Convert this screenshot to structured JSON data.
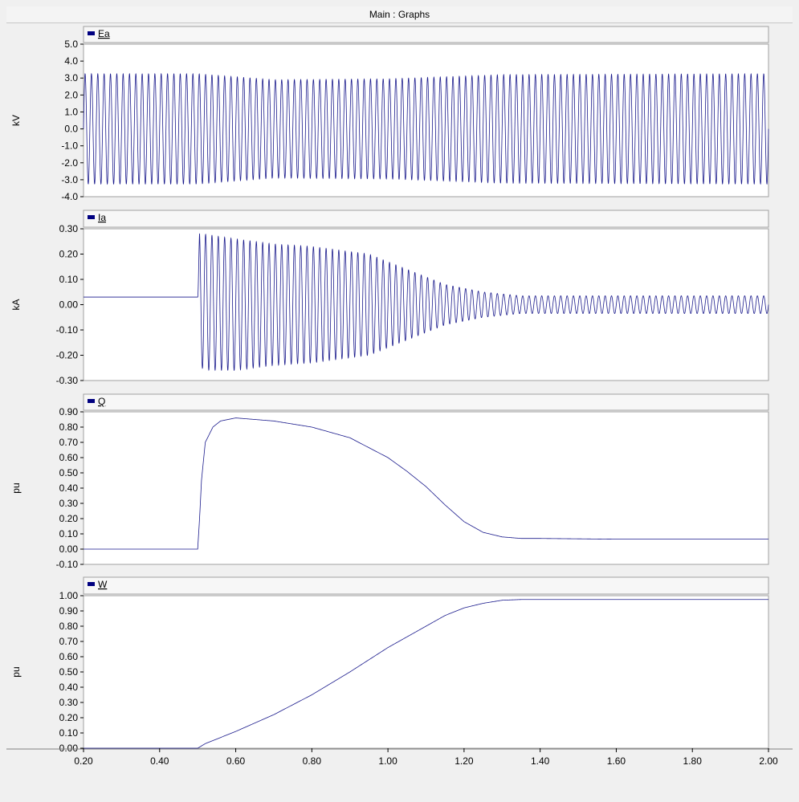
{
  "window": {
    "title": "Main : Graphs"
  },
  "colors": {
    "trace": "#1a1a8c",
    "legend_marker": "#000080",
    "grid": "#d8d8d8",
    "plot_bg": "#ffffff",
    "panel_bg": "#f0f0f0"
  },
  "chart_data": [
    {
      "type": "line",
      "legend": "Ea",
      "ylabel": "kV",
      "ylim": [
        -4.0,
        5.0
      ],
      "yticks": [
        "5.0",
        "4.0",
        "3.0",
        "2.0",
        "1.0",
        "0.0",
        "-1.0",
        "-2.0",
        "-3.0",
        "-4.0"
      ],
      "xlim": [
        0.2,
        2.0
      ],
      "series": [
        {
          "signal": "sine",
          "frequency_hz": 60,
          "envelope_t": [
            0.2,
            0.5,
            0.7,
            1.0,
            1.3,
            2.0
          ],
          "envelope_amp": [
            3.25,
            3.25,
            2.9,
            2.95,
            3.2,
            3.25
          ]
        }
      ]
    },
    {
      "type": "line",
      "legend": "Ia",
      "ylabel": "kA",
      "ylim": [
        -0.3,
        0.3
      ],
      "yticks": [
        "0.30",
        "0.20",
        "0.10",
        "0.00",
        "-0.10",
        "-0.20",
        "-0.30"
      ],
      "xlim": [
        0.2,
        2.0
      ],
      "series": [
        {
          "signal": "sine",
          "frequency_hz": 60,
          "offset_t": [
            0.5,
            0.52,
            0.6,
            0.7
          ],
          "offset_v": [
            0.03,
            0.01,
            0.0,
            0.0
          ],
          "envelope_t": [
            0.2,
            0.5,
            0.505,
            0.6,
            0.7,
            0.8,
            0.95,
            1.05,
            1.15,
            1.25,
            1.35,
            2.0
          ],
          "envelope_amp": [
            0.0,
            0.0,
            0.27,
            0.26,
            0.24,
            0.23,
            0.2,
            0.14,
            0.08,
            0.05,
            0.035,
            0.035
          ]
        }
      ]
    },
    {
      "type": "line",
      "legend": "Q",
      "ylabel": "pu",
      "ylim": [
        -0.1,
        0.9
      ],
      "yticks": [
        "0.90",
        "0.80",
        "0.70",
        "0.60",
        "0.50",
        "0.40",
        "0.30",
        "0.20",
        "0.10",
        "0.00",
        "-0.10"
      ],
      "xlim": [
        0.2,
        2.0
      ],
      "series": [
        {
          "x": [
            0.2,
            0.5,
            0.505,
            0.51,
            0.52,
            0.54,
            0.56,
            0.6,
            0.65,
            0.7,
            0.8,
            0.9,
            1.0,
            1.05,
            1.1,
            1.15,
            1.2,
            1.25,
            1.3,
            1.35,
            1.4,
            1.6,
            2.0
          ],
          "y": [
            0.0,
            0.0,
            0.2,
            0.45,
            0.7,
            0.8,
            0.84,
            0.86,
            0.85,
            0.84,
            0.8,
            0.73,
            0.6,
            0.51,
            0.41,
            0.29,
            0.18,
            0.11,
            0.08,
            0.07,
            0.07,
            0.065,
            0.065
          ]
        }
      ]
    },
    {
      "type": "line",
      "legend": "W",
      "ylabel": "pu",
      "ylim": [
        0.0,
        1.0
      ],
      "yticks": [
        "1.00",
        "0.90",
        "0.80",
        "0.70",
        "0.60",
        "0.50",
        "0.40",
        "0.30",
        "0.20",
        "0.10",
        "0.00"
      ],
      "xlim": [
        0.2,
        2.0
      ],
      "xticks": [
        "0.20",
        "0.40",
        "0.60",
        "0.80",
        "1.00",
        "1.20",
        "1.40",
        "1.60",
        "1.80",
        "2.00"
      ],
      "series": [
        {
          "x": [
            0.2,
            0.5,
            0.52,
            0.6,
            0.7,
            0.8,
            0.9,
            1.0,
            1.1,
            1.15,
            1.2,
            1.25,
            1.3,
            1.35,
            1.4,
            2.0
          ],
          "y": [
            0.0,
            0.0,
            0.03,
            0.11,
            0.22,
            0.35,
            0.5,
            0.66,
            0.8,
            0.87,
            0.92,
            0.95,
            0.97,
            0.975,
            0.975,
            0.975
          ]
        }
      ]
    }
  ]
}
